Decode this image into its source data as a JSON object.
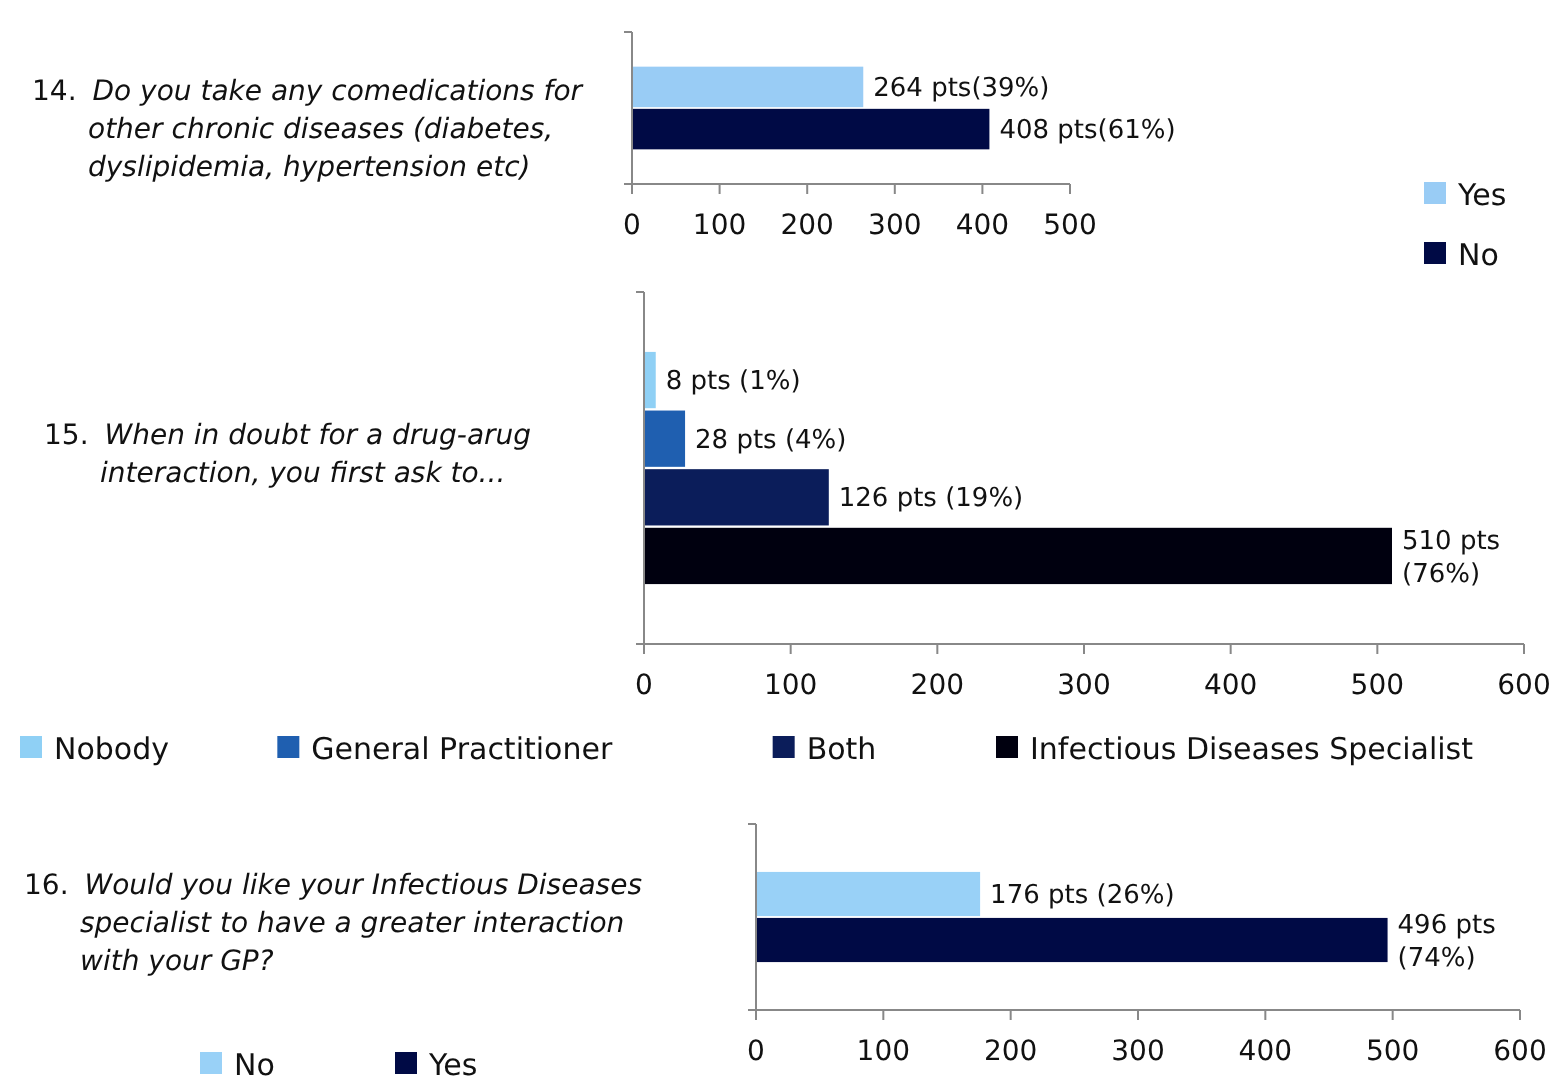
{
  "chart_data": [
    {
      "type": "bar",
      "orientation": "horizontal",
      "title": "14. Do you take any comedications for other chronic diseases (diabetes, dyslipidemia, hypertension etc)",
      "categories": [
        null
      ],
      "xlim": [
        0,
        500
      ],
      "xticks": [
        0,
        100,
        200,
        300,
        400,
        500
      ],
      "legend": "right",
      "series": [
        {
          "name": "Yes",
          "color": "#99ccf5",
          "values": [
            264
          ],
          "value_labels": [
            "264 pts(39%)"
          ]
        },
        {
          "name": "No",
          "color": "#000a45",
          "values": [
            408
          ],
          "value_labels": [
            "408 pts(61%)"
          ]
        }
      ]
    },
    {
      "type": "bar",
      "orientation": "horizontal",
      "title": "15. When in doubt for a drug-arug interaction, you first ask to...",
      "categories": [
        null
      ],
      "xlim": [
        0,
        600
      ],
      "xticks": [
        0,
        100,
        200,
        300,
        400,
        500,
        600
      ],
      "legend": "bottom",
      "series": [
        {
          "name": "Nobody",
          "color": "#8fd0f5",
          "values": [
            8
          ],
          "value_labels": [
            "8 pts (1%)"
          ]
        },
        {
          "name": "General Practitioner",
          "color": "#1f5fb0",
          "values": [
            28
          ],
          "value_labels": [
            "28 pts (4%)"
          ]
        },
        {
          "name": "Both",
          "color": "#0b1d5a",
          "values": [
            126
          ],
          "value_labels": [
            "126 pts (19%)"
          ]
        },
        {
          "name": "Infectious Diseases Specialist",
          "color": "#00000f",
          "values": [
            510
          ],
          "value_labels": [
            "510 pts (76%)"
          ]
        }
      ]
    },
    {
      "type": "bar",
      "orientation": "horizontal",
      "title": "16. Would you like your Infectious Diseases specialist to have a greater interaction with your GP?",
      "categories": [
        null
      ],
      "xlim": [
        0,
        600
      ],
      "xticks": [
        0,
        100,
        200,
        300,
        400,
        500,
        600
      ],
      "legend": "bottom",
      "series": [
        {
          "name": "No",
          "color": "#99d1f7",
          "values": [
            176
          ],
          "value_labels": [
            "176 pts (26%)"
          ]
        },
        {
          "name": "Yes",
          "color": "#000a45",
          "values": [
            496
          ],
          "value_labels": [
            "496 pts (74%)"
          ]
        }
      ]
    }
  ]
}
